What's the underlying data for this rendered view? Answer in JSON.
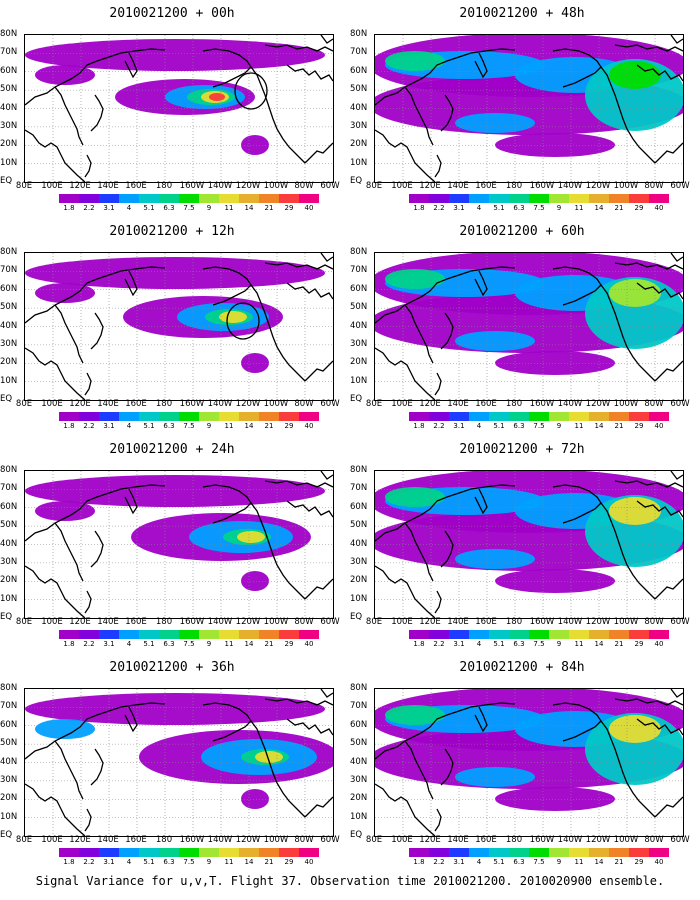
{
  "panels": [
    {
      "title": "2010021200 + 00h",
      "level": 0
    },
    {
      "title": "2010021200 + 12h",
      "level": 1
    },
    {
      "title": "2010021200 + 24h",
      "level": 2
    },
    {
      "title": "2010021200 + 36h",
      "level": 3
    },
    {
      "title": "2010021200 + 48h",
      "level": 4
    },
    {
      "title": "2010021200 + 60h",
      "level": 5
    },
    {
      "title": "2010021200 + 72h",
      "level": 6
    },
    {
      "title": "2010021200 + 84h",
      "level": 7
    }
  ],
  "lat_labels": [
    "80N",
    "70N",
    "60N",
    "50N",
    "40N",
    "30N",
    "20N",
    "10N",
    "EQ"
  ],
  "lon_labels": [
    "80E",
    "100E",
    "120E",
    "140E",
    "160E",
    "180",
    "160W",
    "140W",
    "120W",
    "100W",
    "80W",
    "60W"
  ],
  "colorbar": {
    "ticks": [
      "1.8",
      "2.2",
      "3.1",
      "4",
      "5.1",
      "6.3",
      "7.5",
      "9",
      "11",
      "14",
      "21",
      "29",
      "40"
    ],
    "colors": [
      "#a000c8",
      "#8200dc",
      "#1e3cff",
      "#00a0ff",
      "#00c8c8",
      "#00d28c",
      "#00dc00",
      "#a0e632",
      "#e6dc32",
      "#e6af2d",
      "#f08228",
      "#fa3c3c",
      "#f00082"
    ]
  },
  "caption": "Signal Variance for u,v,T. Flight 37. Observation time 2010021200. 2010020900 ensemble."
}
